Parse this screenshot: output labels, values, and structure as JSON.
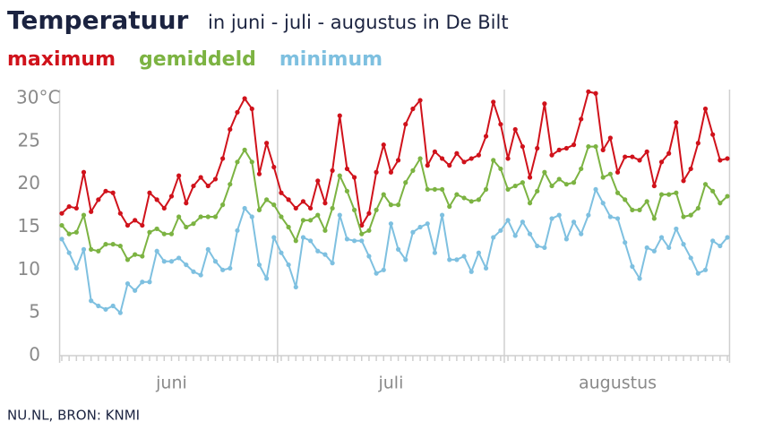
{
  "chart_data": {
    "type": "line",
    "title": "Temperatuur",
    "subtitle": "in juni - juli - augustus in De Bilt",
    "source": "NU.NL, BRON: KNMI",
    "categories": [
      null,
      null,
      null,
      null,
      null,
      null,
      null,
      null,
      null,
      null,
      null,
      null,
      null,
      null,
      null,
      "juni",
      null,
      null,
      null,
      null,
      null,
      null,
      null,
      null,
      null,
      null,
      null,
      null,
      null,
      null,
      null,
      null,
      null,
      null,
      null,
      null,
      null,
      null,
      null,
      null,
      null,
      null,
      null,
      null,
      null,
      "juli",
      null,
      null,
      null,
      null,
      null,
      null,
      null,
      null,
      null,
      null,
      null,
      null,
      null,
      null,
      null,
      null,
      null,
      null,
      null,
      null,
      null,
      null,
      null,
      null,
      null,
      null,
      null,
      null,
      null,
      null,
      "augustus",
      null,
      null,
      null,
      null,
      null,
      null,
      null,
      null,
      null,
      null,
      null,
      null,
      null,
      null,
      null
    ],
    "series": [
      {
        "name": "maximum",
        "color": "#d0121b",
        "values": [
          16.6,
          17.4,
          17.2,
          21.4,
          16.8,
          18.2,
          19.2,
          19.0,
          16.6,
          15.2,
          15.8,
          15.2,
          19.0,
          18.2,
          17.2,
          18.6,
          21.0,
          17.8,
          19.8,
          20.8,
          19.8,
          20.6,
          23.0,
          26.4,
          28.4,
          30.0,
          28.8,
          21.2,
          24.8,
          22.0,
          19.0,
          18.2,
          17.2,
          18.0,
          17.2,
          20.4,
          17.8,
          21.6,
          28.0,
          21.8,
          20.8,
          15.2,
          16.6,
          21.4,
          24.6,
          21.4,
          22.8,
          27.0,
          28.8,
          29.8,
          22.2,
          23.8,
          23.0,
          22.2,
          23.6,
          22.6,
          23.0,
          23.4,
          25.6,
          29.6,
          27.0,
          23.0,
          26.4,
          24.4,
          20.8,
          24.2,
          29.4,
          23.4,
          24.0,
          24.2,
          24.6,
          27.6,
          30.8,
          30.6,
          24.0,
          25.4,
          21.4,
          23.2,
          23.2,
          22.8,
          23.8,
          19.8,
          22.6,
          23.6,
          27.2,
          20.4,
          21.8,
          24.8,
          28.8,
          25.8,
          22.8,
          23.0
        ]
      },
      {
        "name": "gemiddeld",
        "color": "#7cb342",
        "values": [
          15.2,
          14.2,
          14.4,
          16.4,
          12.4,
          12.2,
          13.0,
          13.0,
          12.8,
          11.2,
          11.8,
          11.6,
          14.4,
          14.8,
          14.2,
          14.2,
          16.2,
          15.0,
          15.4,
          16.2,
          16.2,
          16.2,
          17.6,
          20.0,
          22.6,
          24.0,
          22.6,
          17.0,
          18.2,
          17.6,
          16.2,
          15.0,
          13.4,
          15.8,
          15.8,
          16.4,
          14.6,
          17.2,
          21.0,
          19.2,
          17.0,
          14.2,
          14.6,
          17.0,
          18.8,
          17.6,
          17.6,
          20.2,
          21.6,
          23.0,
          19.4,
          19.4,
          19.4,
          17.4,
          18.8,
          18.4,
          18.0,
          18.2,
          19.4,
          22.8,
          21.8,
          19.4,
          19.8,
          20.2,
          17.8,
          19.2,
          21.4,
          19.8,
          20.6,
          20.0,
          20.2,
          21.8,
          24.4,
          24.4,
          20.8,
          21.2,
          19.0,
          18.2,
          17.0,
          17.0,
          18.0,
          16.0,
          18.8,
          18.8,
          19.0,
          16.2,
          16.4,
          17.2,
          20.0,
          19.2,
          17.8,
          18.6
        ]
      },
      {
        "name": "minimum",
        "color": "#7ec0e0",
        "values": [
          13.6,
          12.0,
          10.2,
          12.4,
          6.4,
          5.8,
          5.4,
          5.8,
          5.0,
          8.4,
          7.6,
          8.6,
          8.6,
          12.2,
          11.0,
          11.0,
          11.4,
          10.6,
          9.8,
          9.4,
          12.4,
          11.0,
          10.0,
          10.2,
          14.6,
          17.2,
          16.2,
          10.6,
          9.0,
          13.8,
          12.0,
          10.6,
          8.0,
          13.8,
          13.4,
          12.2,
          11.8,
          10.8,
          16.4,
          13.6,
          13.4,
          13.4,
          11.6,
          9.6,
          10.0,
          15.4,
          12.4,
          11.2,
          14.4,
          15.0,
          15.4,
          12.0,
          16.4,
          11.2,
          11.2,
          11.6,
          9.8,
          12.0,
          10.2,
          13.8,
          14.6,
          15.8,
          14.0,
          15.6,
          14.2,
          12.8,
          12.6,
          16.0,
          16.4,
          13.6,
          15.6,
          14.2,
          16.4,
          19.4,
          17.8,
          16.2,
          16.0,
          13.2,
          10.4,
          9.0,
          12.6,
          12.2,
          13.8,
          12.6,
          14.8,
          13.0,
          11.4,
          9.6,
          10.0,
          13.4,
          12.8,
          13.8
        ]
      }
    ],
    "ylim": [
      0,
      30
    ],
    "yticks": [
      0,
      5,
      10,
      15,
      20,
      25,
      {
        "value": 30,
        "label": "30°C"
      }
    ],
    "grid": false
  }
}
